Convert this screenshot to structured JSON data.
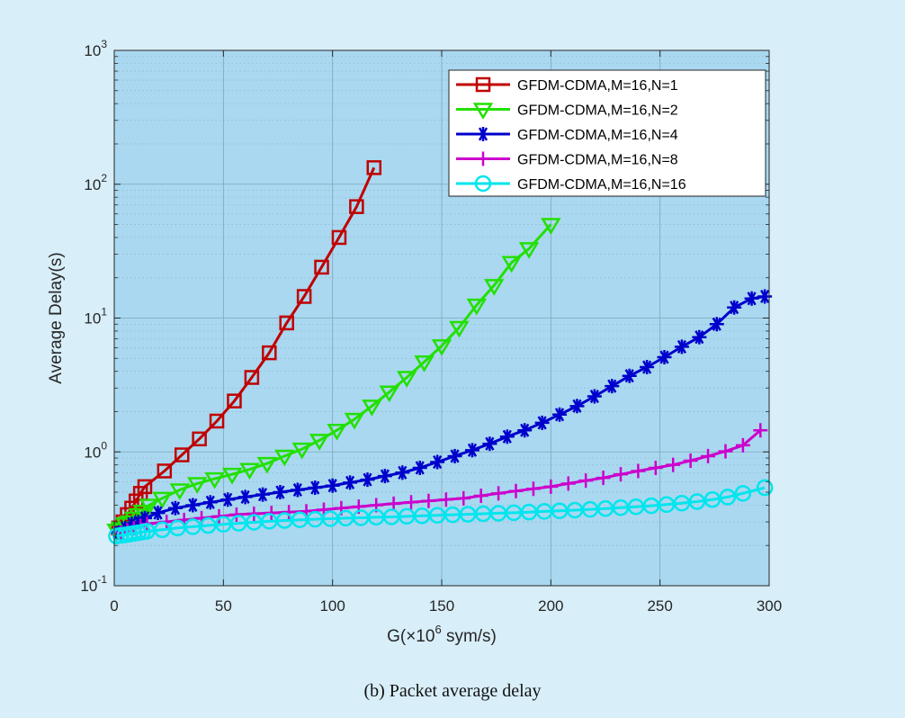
{
  "caption": "(b) Packet average delay",
  "chart_data": {
    "type": "line",
    "xlabel_parts": {
      "prefix": "G(×10",
      "sup": "6",
      "suffix": " sym/s)"
    },
    "ylabel": "Average Delay(s)",
    "xlim": [
      0,
      300
    ],
    "ylim": [
      0.1,
      1000
    ],
    "yscale": "log",
    "grid": true,
    "minor_grid": true,
    "legend_position": "top-right",
    "x_ticks": [
      "0",
      "50",
      "100",
      "150",
      "200",
      "250",
      "300"
    ],
    "x_tick_values": [
      0,
      50,
      100,
      150,
      200,
      250,
      300
    ],
    "y_ticks": [
      {
        "value": 0.1,
        "base": "10",
        "exp": "-1"
      },
      {
        "value": 1,
        "base": "10",
        "exp": "0"
      },
      {
        "value": 10,
        "base": "10",
        "exp": "1"
      },
      {
        "value": 100,
        "base": "10",
        "exp": "2"
      },
      {
        "value": 1000,
        "base": "10",
        "exp": "3"
      }
    ],
    "plot_background": "#a9d8f0",
    "series": [
      {
        "name": "GFDM-CDMA,M=16,N=1",
        "color": "#c00000",
        "marker": "square",
        "x": [
          2,
          4,
          6,
          8,
          10,
          12,
          14,
          23,
          31,
          39,
          47,
          55,
          63,
          71,
          79,
          87,
          95,
          103,
          111,
          119
        ],
        "y": [
          0.27,
          0.3,
          0.34,
          0.38,
          0.43,
          0.49,
          0.55,
          0.72,
          0.95,
          1.25,
          1.7,
          2.4,
          3.6,
          5.5,
          9.2,
          14.5,
          24,
          40,
          68,
          133
        ]
      },
      {
        "name": "GFDM-CDMA,M=16,N=2",
        "color": "#22e000",
        "marker": "triangle-down",
        "x": [
          1,
          3,
          5,
          7,
          9,
          11,
          13,
          16,
          22,
          30,
          38,
          46,
          54,
          62,
          70,
          78,
          86,
          94,
          102,
          110,
          118,
          126,
          134,
          142,
          150,
          158,
          166,
          174,
          182,
          190,
          200
        ],
        "y": [
          0.26,
          0.27,
          0.29,
          0.3,
          0.32,
          0.34,
          0.36,
          0.4,
          0.45,
          0.52,
          0.58,
          0.63,
          0.68,
          0.74,
          0.82,
          0.93,
          1.05,
          1.22,
          1.45,
          1.75,
          2.2,
          2.8,
          3.6,
          4.7,
          6.2,
          8.5,
          12.5,
          17.5,
          26,
          33,
          50
        ]
      },
      {
        "name": "GFDM-CDMA,M=16,N=4",
        "color": "#0000cc",
        "marker": "asterisk",
        "x": [
          2,
          5,
          8,
          11,
          14,
          20,
          28,
          36,
          44,
          52,
          60,
          68,
          76,
          84,
          92,
          100,
          108,
          116,
          124,
          132,
          140,
          148,
          156,
          164,
          172,
          180,
          188,
          196,
          204,
          212,
          220,
          228,
          236,
          244,
          252,
          260,
          268,
          276,
          284,
          292,
          298
        ],
        "y": [
          0.25,
          0.27,
          0.29,
          0.3,
          0.32,
          0.35,
          0.38,
          0.4,
          0.42,
          0.44,
          0.46,
          0.48,
          0.5,
          0.52,
          0.54,
          0.56,
          0.59,
          0.62,
          0.66,
          0.7,
          0.76,
          0.84,
          0.93,
          1.03,
          1.15,
          1.3,
          1.45,
          1.65,
          1.9,
          2.2,
          2.6,
          3.1,
          3.7,
          4.3,
          5.1,
          6.1,
          7.2,
          9.0,
          12.0,
          14.0,
          14.5
        ]
      },
      {
        "name": "GFDM-CDMA,M=16,N=8",
        "color": "#cc00cc",
        "marker": "plus",
        "x": [
          3,
          6,
          9,
          12,
          15,
          24,
          32,
          40,
          48,
          56,
          64,
          72,
          80,
          88,
          96,
          104,
          112,
          120,
          128,
          136,
          144,
          152,
          160,
          168,
          176,
          184,
          192,
          200,
          208,
          216,
          224,
          232,
          240,
          248,
          256,
          264,
          272,
          280,
          288,
          296
        ],
        "y": [
          0.25,
          0.26,
          0.27,
          0.28,
          0.29,
          0.3,
          0.31,
          0.32,
          0.33,
          0.34,
          0.345,
          0.35,
          0.355,
          0.36,
          0.37,
          0.38,
          0.39,
          0.4,
          0.41,
          0.42,
          0.43,
          0.44,
          0.45,
          0.47,
          0.49,
          0.51,
          0.53,
          0.55,
          0.58,
          0.61,
          0.64,
          0.68,
          0.72,
          0.76,
          0.8,
          0.86,
          0.93,
          1.01,
          1.12,
          1.45
        ]
      },
      {
        "name": "GFDM-CDMA,M=16,N=16",
        "color": "#00e5ee",
        "marker": "circle",
        "x": [
          1,
          3,
          5,
          7,
          9,
          11,
          13,
          15,
          22,
          29,
          36,
          43,
          50,
          57,
          64,
          71,
          78,
          85,
          92,
          99,
          106,
          113,
          120,
          127,
          134,
          141,
          148,
          155,
          162,
          169,
          176,
          183,
          190,
          197,
          204,
          211,
          218,
          225,
          232,
          239,
          246,
          253,
          260,
          267,
          274,
          281,
          288,
          298
        ],
        "y": [
          0.235,
          0.238,
          0.24,
          0.243,
          0.246,
          0.249,
          0.252,
          0.255,
          0.262,
          0.27,
          0.276,
          0.282,
          0.288,
          0.293,
          0.298,
          0.303,
          0.307,
          0.311,
          0.314,
          0.317,
          0.32,
          0.322,
          0.325,
          0.327,
          0.33,
          0.333,
          0.336,
          0.339,
          0.342,
          0.345,
          0.348,
          0.351,
          0.355,
          0.359,
          0.363,
          0.367,
          0.372,
          0.377,
          0.383,
          0.389,
          0.396,
          0.404,
          0.414,
          0.425,
          0.44,
          0.46,
          0.49,
          0.54
        ]
      }
    ]
  }
}
